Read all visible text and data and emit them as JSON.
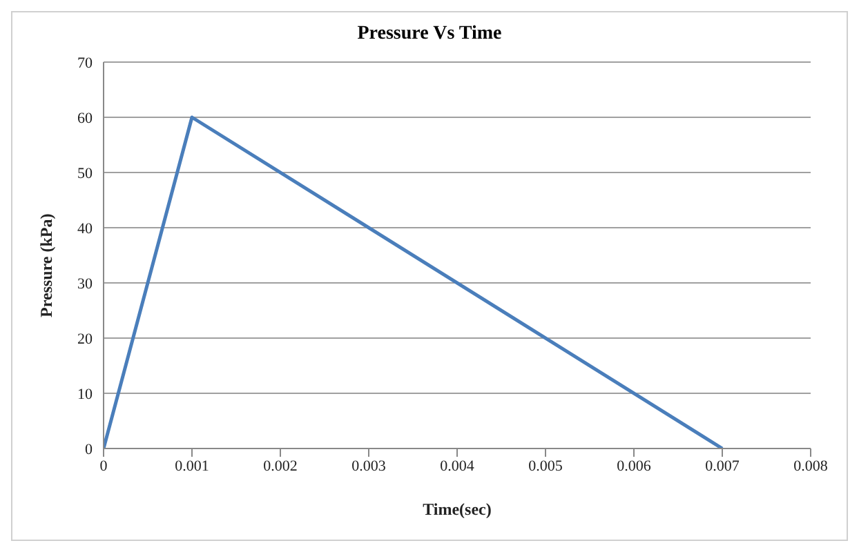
{
  "chart_data": {
    "type": "line",
    "title": "Pressure Vs Time",
    "xlabel": "Time(sec)",
    "ylabel": "Pressure (kPa)",
    "x": [
      0,
      0.001,
      0.007
    ],
    "series": [
      {
        "color": "#4a7ebb",
        "values": [
          0,
          60,
          0
        ]
      }
    ],
    "xlim": [
      0,
      0.008
    ],
    "xticks": [
      0,
      0.001,
      0.002,
      0.003,
      0.004,
      0.005,
      0.006,
      0.007,
      0.008
    ],
    "ylim": [
      0,
      70
    ],
    "yticks": [
      0,
      10,
      20,
      30,
      40,
      50,
      60,
      70
    ],
    "grid": "y",
    "marker": "none",
    "line_style": "solid",
    "legend": false
  }
}
